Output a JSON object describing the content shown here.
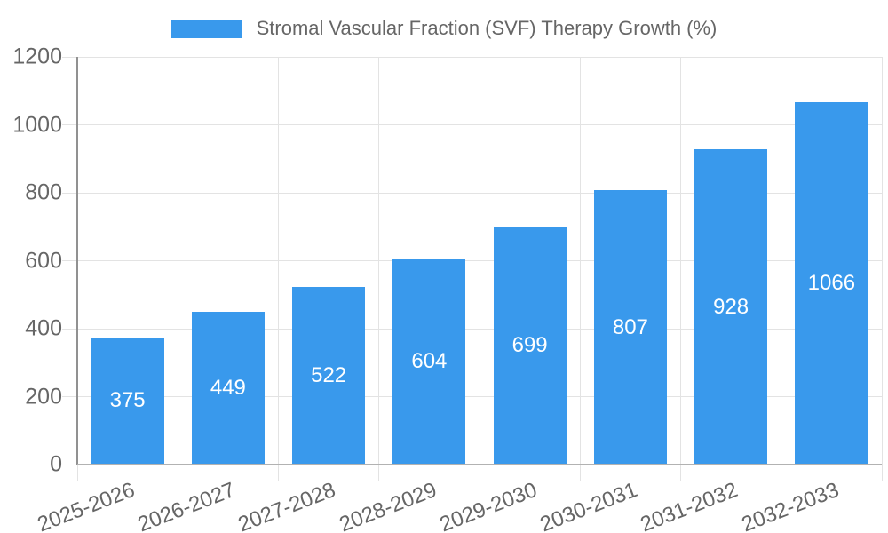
{
  "chart_data": {
    "type": "bar",
    "title": "Stromal Vascular Fraction (SVF) Therapy Growth (%)",
    "legend_label": "Stromal Vascular Fraction (SVF) Therapy Growth (%)",
    "legend_position": "top",
    "categories": [
      "2025-2026",
      "2026-2027",
      "2027-2028",
      "2028-2029",
      "2029-2030",
      "2030-2031",
      "2031-2032",
      "2032-2033"
    ],
    "values": [
      375,
      449,
      522,
      604,
      699,
      807,
      928,
      1066
    ],
    "xlabel": "",
    "ylabel": "",
    "ylim": [
      0,
      1200
    ],
    "ytick_step": 200,
    "yticks": [
      0,
      200,
      400,
      600,
      800,
      1000,
      1200
    ],
    "grid": true,
    "value_labels_shown": true
  },
  "colors": {
    "bar": "#3999EC",
    "grid": "#e3e3e3",
    "axis_y": "#919191",
    "axis_x": "#b2b2b2",
    "tick_text": "#666666",
    "value_text": "#ffffff",
    "background": "#ffffff"
  }
}
